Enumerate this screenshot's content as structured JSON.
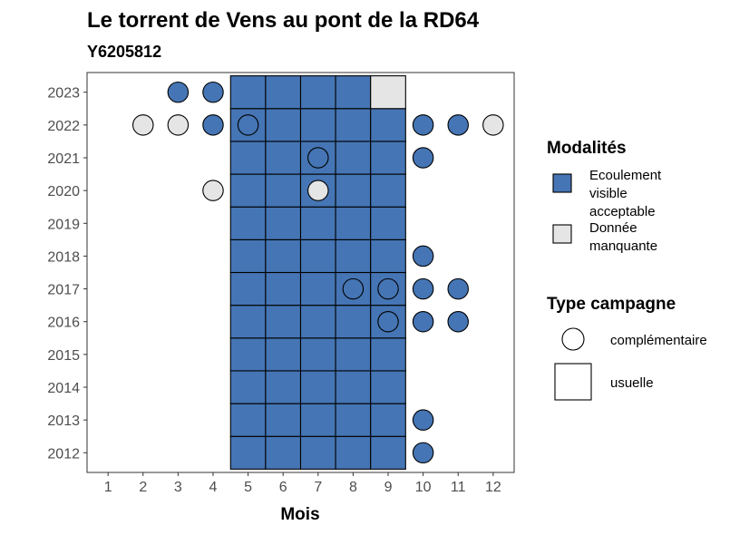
{
  "chart_data": {
    "type": "heatmap",
    "title": "Le torrent de Vens au pont de la RD64",
    "subtitle": "Y6205812",
    "xlabel": "Mois",
    "ylabel": "",
    "x_ticks": [
      "1",
      "2",
      "3",
      "4",
      "5",
      "6",
      "7",
      "8",
      "9",
      "10",
      "11",
      "12"
    ],
    "y_ticks": [
      "2012",
      "2013",
      "2014",
      "2015",
      "2016",
      "2017",
      "2018",
      "2019",
      "2020",
      "2021",
      "2022",
      "2023"
    ],
    "colors": {
      "ecoulement": "#4575b4",
      "manquante": "#e5e5e5"
    },
    "usuelle": [
      {
        "year": 2012,
        "months": [
          5,
          6,
          7,
          8,
          9
        ],
        "status": [
          "ecoulement",
          "ecoulement",
          "ecoulement",
          "ecoulement",
          "ecoulement"
        ]
      },
      {
        "year": 2013,
        "months": [
          5,
          6,
          7,
          8,
          9
        ],
        "status": [
          "ecoulement",
          "ecoulement",
          "ecoulement",
          "ecoulement",
          "ecoulement"
        ]
      },
      {
        "year": 2014,
        "months": [
          5,
          6,
          7,
          8,
          9
        ],
        "status": [
          "ecoulement",
          "ecoulement",
          "ecoulement",
          "ecoulement",
          "ecoulement"
        ]
      },
      {
        "year": 2015,
        "months": [
          5,
          6,
          7,
          8,
          9
        ],
        "status": [
          "ecoulement",
          "ecoulement",
          "ecoulement",
          "ecoulement",
          "ecoulement"
        ]
      },
      {
        "year": 2016,
        "months": [
          5,
          6,
          7,
          8,
          9
        ],
        "status": [
          "ecoulement",
          "ecoulement",
          "ecoulement",
          "ecoulement",
          "ecoulement"
        ]
      },
      {
        "year": 2017,
        "months": [
          5,
          6,
          7,
          8,
          9
        ],
        "status": [
          "ecoulement",
          "ecoulement",
          "ecoulement",
          "ecoulement",
          "ecoulement"
        ]
      },
      {
        "year": 2018,
        "months": [
          5,
          6,
          7,
          8,
          9
        ],
        "status": [
          "ecoulement",
          "ecoulement",
          "ecoulement",
          "ecoulement",
          "ecoulement"
        ]
      },
      {
        "year": 2019,
        "months": [
          5,
          6,
          7,
          8,
          9
        ],
        "status": [
          "ecoulement",
          "ecoulement",
          "ecoulement",
          "ecoulement",
          "ecoulement"
        ]
      },
      {
        "year": 2020,
        "months": [
          5,
          6,
          7,
          8,
          9
        ],
        "status": [
          "ecoulement",
          "ecoulement",
          "ecoulement",
          "ecoulement",
          "ecoulement"
        ]
      },
      {
        "year": 2021,
        "months": [
          5,
          6,
          7,
          8,
          9
        ],
        "status": [
          "ecoulement",
          "ecoulement",
          "ecoulement",
          "ecoulement",
          "ecoulement"
        ]
      },
      {
        "year": 2022,
        "months": [
          5,
          6,
          7,
          8,
          9
        ],
        "status": [
          "ecoulement",
          "ecoulement",
          "ecoulement",
          "ecoulement",
          "ecoulement"
        ]
      },
      {
        "year": 2023,
        "months": [
          5,
          6,
          7,
          8,
          9
        ],
        "status": [
          "ecoulement",
          "ecoulement",
          "ecoulement",
          "ecoulement",
          "manquante"
        ]
      }
    ],
    "complementaire": [
      {
        "year": 2023,
        "month": 3,
        "status": "ecoulement"
      },
      {
        "year": 2023,
        "month": 4,
        "status": "ecoulement"
      },
      {
        "year": 2022,
        "month": 2,
        "status": "manquante"
      },
      {
        "year": 2022,
        "month": 3,
        "status": "manquante"
      },
      {
        "year": 2022,
        "month": 4,
        "status": "ecoulement"
      },
      {
        "year": 2022,
        "month": 5,
        "status": "ecoulement"
      },
      {
        "year": 2022,
        "month": 10,
        "status": "ecoulement"
      },
      {
        "year": 2022,
        "month": 11,
        "status": "ecoulement"
      },
      {
        "year": 2022,
        "month": 12,
        "status": "manquante"
      },
      {
        "year": 2021,
        "month": 7,
        "status": "ecoulement"
      },
      {
        "year": 2021,
        "month": 10,
        "status": "ecoulement"
      },
      {
        "year": 2020,
        "month": 4,
        "status": "manquante"
      },
      {
        "year": 2020,
        "month": 7,
        "status": "manquante"
      },
      {
        "year": 2018,
        "month": 10,
        "status": "ecoulement"
      },
      {
        "year": 2017,
        "month": 8,
        "status": "ecoulement"
      },
      {
        "year": 2017,
        "month": 9,
        "status": "ecoulement"
      },
      {
        "year": 2017,
        "month": 10,
        "status": "ecoulement"
      },
      {
        "year": 2017,
        "month": 11,
        "status": "ecoulement"
      },
      {
        "year": 2016,
        "month": 9,
        "status": "ecoulement"
      },
      {
        "year": 2016,
        "month": 10,
        "status": "ecoulement"
      },
      {
        "year": 2016,
        "month": 11,
        "status": "ecoulement"
      },
      {
        "year": 2013,
        "month": 10,
        "status": "ecoulement"
      },
      {
        "year": 2012,
        "month": 10,
        "status": "ecoulement"
      }
    ],
    "legend": {
      "modalites_title": "Modalités",
      "modalites_items": [
        {
          "key": "ecoulement",
          "lines": [
            "Ecoulement",
            "visible",
            "acceptable"
          ]
        },
        {
          "key": "manquante",
          "lines": [
            "Donnée",
            "manquante"
          ]
        }
      ],
      "type_title": "Type campagne",
      "type_items": [
        {
          "shape": "circle",
          "label": "complémentaire"
        },
        {
          "shape": "square",
          "label": "usuelle"
        }
      ],
      "position": "right"
    }
  }
}
